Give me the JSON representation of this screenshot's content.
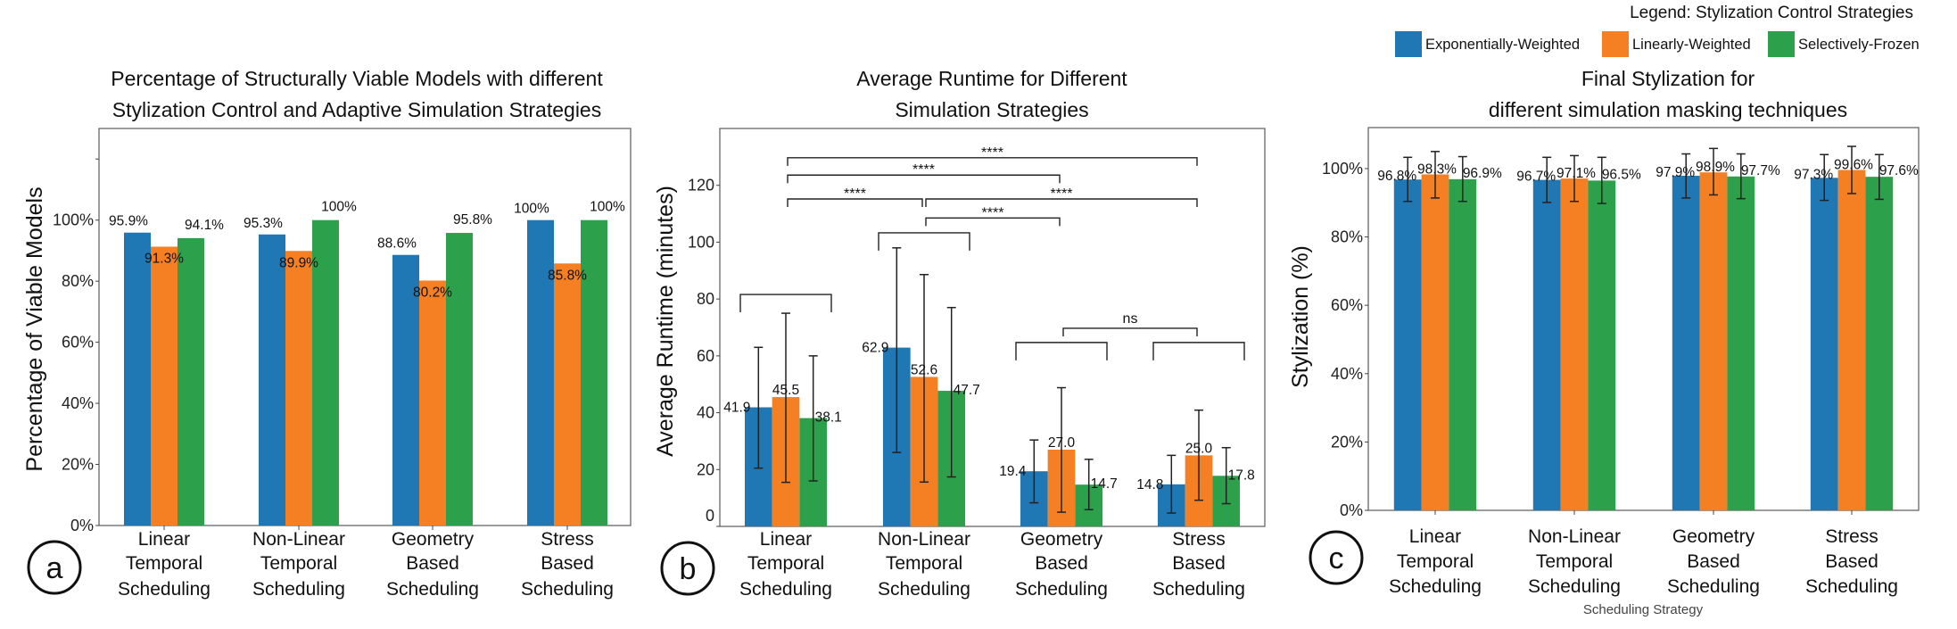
{
  "legend": {
    "title": "Legend: Stylization Control Strategies",
    "entries": [
      {
        "label": "Exponentially-Weighted",
        "color": "#1f77b4"
      },
      {
        "label": "Linearly-Weighted",
        "color": "#f58024"
      },
      {
        "label": "Selectively-Frozen",
        "color": "#2ca04a"
      }
    ]
  },
  "panels": [
    "a",
    "b",
    "c"
  ],
  "chart_data": [
    {
      "type": "bar",
      "title_lines": [
        "Percentage of Structurally Viable Models with different",
        "Stylization Control and Adaptive Simulation Strategies"
      ],
      "ylabel": "Percentage of  Viable Models",
      "xlabel": "",
      "ylim": [
        0,
        130
      ],
      "yticks": [
        0,
        20,
        40,
        60,
        80,
        100,
        120
      ],
      "ytick_labels": [
        "0%",
        "20%",
        "40%",
        "60%",
        "80%",
        "100%",
        ""
      ],
      "categories": [
        [
          "Linear",
          "Temporal",
          "Scheduling"
        ],
        [
          "Non-Linear",
          "Temporal",
          "Scheduling"
        ],
        [
          "Geometry",
          "Based",
          "Scheduling"
        ],
        [
          "Stress",
          "Based",
          "Scheduling"
        ]
      ],
      "series": [
        {
          "name": "Exponentially-Weighted",
          "values": [
            95.9,
            95.3,
            88.6,
            100
          ],
          "labels": [
            "95.9%",
            "95.3%",
            "88.6%",
            "100%"
          ]
        },
        {
          "name": "Linearly-Weighted",
          "values": [
            91.3,
            89.9,
            80.2,
            85.8
          ],
          "labels": [
            "91.3%",
            "89.9%",
            "80.2%",
            "85.8%"
          ]
        },
        {
          "name": "Selectively-Frozen",
          "values": [
            94.1,
            100,
            95.8,
            100
          ],
          "labels": [
            "94.1%",
            "100%",
            "95.8%",
            "100%"
          ]
        }
      ],
      "grid": false
    },
    {
      "type": "bar",
      "title_lines": [
        "Average Runtime for Different",
        "Simulation Strategies"
      ],
      "ylabel": "Average Runtime (minutes)",
      "xlabel": "",
      "ylim": [
        0,
        140
      ],
      "yticks": [
        0,
        20,
        40,
        60,
        80,
        100,
        120
      ],
      "ytick_labels": [
        "0",
        "20",
        "40",
        "60",
        "80",
        "100",
        "120"
      ],
      "categories": [
        [
          "Linear",
          "Temporal",
          "Scheduling"
        ],
        [
          "Non-Linear",
          "Temporal",
          "Scheduling"
        ],
        [
          "Geometry",
          "Based",
          "Scheduling"
        ],
        [
          "Stress",
          "Based",
          "Scheduling"
        ]
      ],
      "series": [
        {
          "name": "Exponentially-Weighted",
          "values": [
            41.9,
            62.9,
            19.4,
            14.8
          ],
          "labels": [
            "41.9",
            "62.9",
            "19.4",
            "14.8"
          ],
          "error_low": [
            20.5,
            26,
            8.3,
            4.7
          ],
          "error_high": [
            63,
            98,
            30.4,
            25
          ]
        },
        {
          "name": "Linearly-Weighted",
          "values": [
            45.5,
            52.6,
            27.0,
            25.0
          ],
          "labels": [
            "45.5",
            "52.6",
            "27.0",
            "25.0"
          ],
          "error_low": [
            15.5,
            15.6,
            5,
            9.2
          ],
          "error_high": [
            75,
            88.6,
            48.8,
            40.9
          ]
        },
        {
          "name": "Selectively-Frozen",
          "values": [
            38.1,
            47.7,
            14.7,
            17.8
          ],
          "labels": [
            "38.1",
            "47.7",
            "14.7",
            "17.8"
          ],
          "error_low": [
            16,
            17.4,
            5.9,
            8
          ],
          "error_high": [
            60,
            77,
            23.6,
            27.7
          ]
        }
      ],
      "significance": [
        {
          "type": "within",
          "categories": [
            0
          ],
          "y": 81.6,
          "label": ""
        },
        {
          "type": "within",
          "categories": [
            1
          ],
          "y": 103.3,
          "label": ""
        },
        {
          "type": "within",
          "categories": [
            2
          ],
          "y": 64.7,
          "label": ""
        },
        {
          "type": "within",
          "categories": [
            3
          ],
          "y": 64.7,
          "label": ""
        },
        {
          "type": "between",
          "categories": [
            1,
            2
          ],
          "y": 108.5,
          "label": "****"
        },
        {
          "type": "between",
          "categories": [
            0,
            1
          ],
          "y": 115.2,
          "label": "****"
        },
        {
          "type": "between",
          "categories": [
            1,
            3
          ],
          "y": 115.2,
          "label": "****"
        },
        {
          "type": "between",
          "categories": [
            0,
            2
          ],
          "y": 123.6,
          "label": "****"
        },
        {
          "type": "between",
          "categories": [
            0,
            3
          ],
          "y": 129.7,
          "label": "****"
        },
        {
          "type": "between",
          "categories": [
            2,
            3
          ],
          "y": 69.7,
          "label": "ns"
        }
      ],
      "grid": false
    },
    {
      "type": "bar",
      "title_lines": [
        "Final Stylization for",
        "different simulation masking techniques"
      ],
      "ylabel": "Stylization (%)",
      "xlabel": "Scheduling Strategy",
      "ylim": [
        0,
        112
      ],
      "yticks": [
        0,
        20,
        40,
        60,
        80,
        100
      ],
      "ytick_labels": [
        "0%",
        "20%",
        "40%",
        "60%",
        "80%",
        "100%"
      ],
      "categories": [
        [
          "Linear",
          "Temporal",
          "Scheduling"
        ],
        [
          "Non-Linear",
          "Temporal",
          "Scheduling"
        ],
        [
          "Geometry",
          "Based",
          "Scheduling"
        ],
        [
          "Stress",
          "Based",
          "Scheduling"
        ]
      ],
      "series": [
        {
          "name": "Exponentially-Weighted",
          "values": [
            96.8,
            96.7,
            97.9,
            97.3
          ],
          "labels": [
            "96.8%",
            "96.7%",
            "97.9%",
            "97.3%"
          ],
          "error_low": [
            90.4,
            90.1,
            91.4,
            90.7
          ],
          "error_high": [
            103.3,
            103.3,
            104.3,
            104.1
          ]
        },
        {
          "name": "Linearly-Weighted",
          "values": [
            98.3,
            97.1,
            98.9,
            99.6
          ],
          "labels": [
            "98.3%",
            "97.1%",
            "98.9%",
            "99.6%"
          ],
          "error_low": [
            91.4,
            90.4,
            92.3,
            92.7
          ],
          "error_high": [
            105.0,
            103.8,
            105.9,
            106.5
          ]
        },
        {
          "name": "Selectively-Frozen",
          "values": [
            96.9,
            96.5,
            97.7,
            97.6
          ],
          "labels": [
            "96.9%",
            "96.5%",
            "97.7%",
            "97.6%"
          ],
          "error_low": [
            90.4,
            89.8,
            91.2,
            91.0
          ],
          "error_high": [
            103.5,
            103.3,
            104.3,
            104.1
          ]
        }
      ],
      "grid": false
    }
  ]
}
